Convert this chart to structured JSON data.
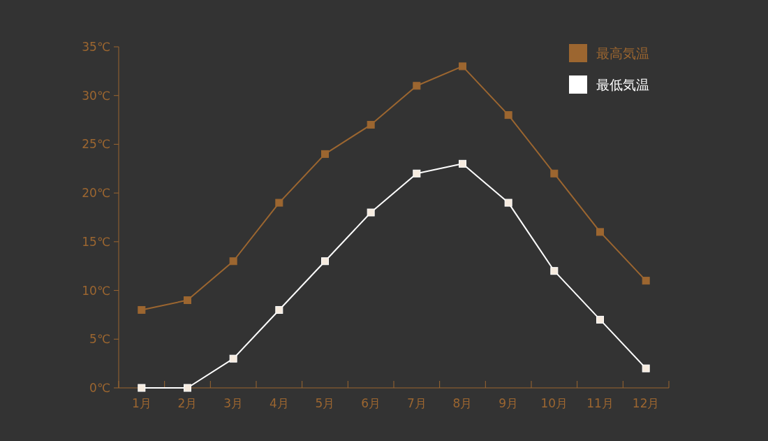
{
  "chart_data": {
    "type": "line",
    "categories": [
      "1月",
      "2月",
      "3月",
      "4月",
      "5月",
      "6月",
      "7月",
      "8月",
      "9月",
      "10月",
      "11月",
      "12月"
    ],
    "series": [
      {
        "name": "最高気温",
        "color": "#9c6630",
        "values": [
          8,
          9,
          13,
          19,
          24,
          27,
          31,
          33,
          28,
          22,
          16,
          11
        ]
      },
      {
        "name": "最低気温",
        "color": "#ffffff",
        "values": [
          0,
          0,
          3,
          8,
          13,
          18,
          22,
          23,
          19,
          12,
          7,
          2
        ]
      }
    ],
    "ylim": [
      0,
      35
    ],
    "yticks": [
      {
        "value": 0,
        "label": "0℃"
      },
      {
        "value": 5,
        "label": "5℃"
      },
      {
        "value": 10,
        "label": "10℃"
      },
      {
        "value": 15,
        "label": "15℃"
      },
      {
        "value": 20,
        "label": "20℃"
      },
      {
        "value": 25,
        "label": "25℃"
      },
      {
        "value": 30,
        "label": "30℃"
      },
      {
        "value": 35,
        "label": "35℃"
      }
    ],
    "marker": "square",
    "line_style": "solid",
    "grid": false,
    "legend": "top right"
  }
}
